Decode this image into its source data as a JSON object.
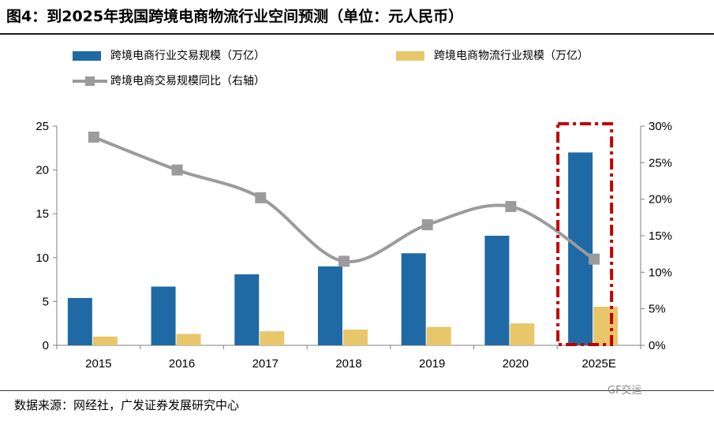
{
  "title": "图4：到2025年我国跨境电商物流行业空间预测（单位：元人民币）",
  "source": "数据来源：网经社，广发证券发展研究中心",
  "watermark": "GF交运",
  "colors": {
    "bar1": "#1f6aa5",
    "bar2": "#e8c76a",
    "line": "#9b9b9b",
    "highlight": "#c00000"
  },
  "chart_data": {
    "type": "bar",
    "categories": [
      "2015",
      "2016",
      "2017",
      "2018",
      "2019",
      "2020",
      "2025E"
    ],
    "series": [
      {
        "name": "跨境电商行业交易规模（万亿）",
        "type": "bar",
        "axis": "left",
        "values": [
          5.4,
          6.7,
          8.1,
          9.0,
          10.5,
          12.5,
          22.0
        ]
      },
      {
        "name": "跨境电商物流行业规模（万亿）",
        "type": "bar",
        "axis": "left",
        "values": [
          1.0,
          1.3,
          1.6,
          1.8,
          2.1,
          2.5,
          4.4
        ]
      },
      {
        "name": "跨境电商交易规模同比（右轴）",
        "type": "line",
        "axis": "right",
        "values": [
          0.285,
          0.24,
          0.202,
          0.115,
          0.165,
          0.19,
          0.118
        ]
      }
    ],
    "y_left": {
      "min": 0,
      "max": 25,
      "ticks": [
        0,
        5,
        10,
        15,
        20,
        25
      ],
      "tick_labels": [
        "0",
        "5",
        "10",
        "15",
        "20",
        "25"
      ]
    },
    "y_right": {
      "min": 0,
      "max": 0.3,
      "ticks": [
        0,
        0.05,
        0.1,
        0.15,
        0.2,
        0.25,
        0.3
      ],
      "tick_labels": [
        "0%",
        "5%",
        "10%",
        "15%",
        "20%",
        "25%",
        "30%"
      ]
    },
    "legend_position": "top",
    "highlight_category": "2025E",
    "grid": false
  }
}
